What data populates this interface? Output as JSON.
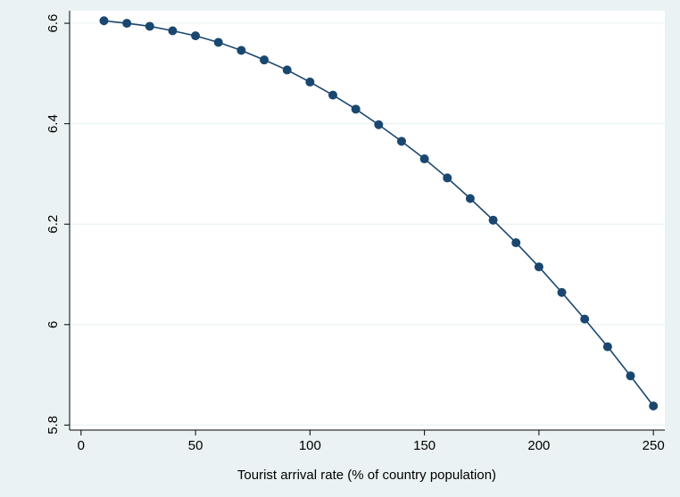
{
  "colors": {
    "background": "#eaf2f3",
    "plot_background": "#ffffff",
    "grid": "#eaf2f3",
    "series": "#1a476f"
  },
  "chart_data": {
    "type": "line",
    "title": "",
    "xlabel": "Tourist arrival rate (% of country population)",
    "ylabel": "",
    "xlim": [
      -5,
      255
    ],
    "ylim": [
      5.79,
      6.625
    ],
    "x_ticks": [
      0,
      50,
      100,
      150,
      200,
      250
    ],
    "x_tick_labels": [
      "0",
      "50",
      "100",
      "150",
      "200",
      "250"
    ],
    "y_ticks": [
      5.8,
      6.0,
      6.2,
      6.4,
      6.6
    ],
    "y_tick_labels": [
      "5.8",
      "6",
      "6.2",
      "6.4",
      "6.6"
    ],
    "grid": true,
    "markers": true,
    "series": [
      {
        "x": [
          10,
          20,
          30,
          40,
          50,
          60,
          70,
          80,
          90,
          100,
          110,
          120,
          130,
          140,
          150,
          160,
          170,
          180,
          190,
          200,
          210,
          220,
          230,
          240,
          250
        ],
        "values": [
          6.605,
          6.6,
          6.594,
          6.585,
          6.575,
          6.562,
          6.546,
          6.527,
          6.507,
          6.483,
          6.457,
          6.429,
          6.398,
          6.365,
          6.33,
          6.292,
          6.251,
          6.208,
          6.163,
          6.115,
          6.064,
          6.011,
          5.956,
          5.898,
          5.838
        ]
      }
    ]
  }
}
